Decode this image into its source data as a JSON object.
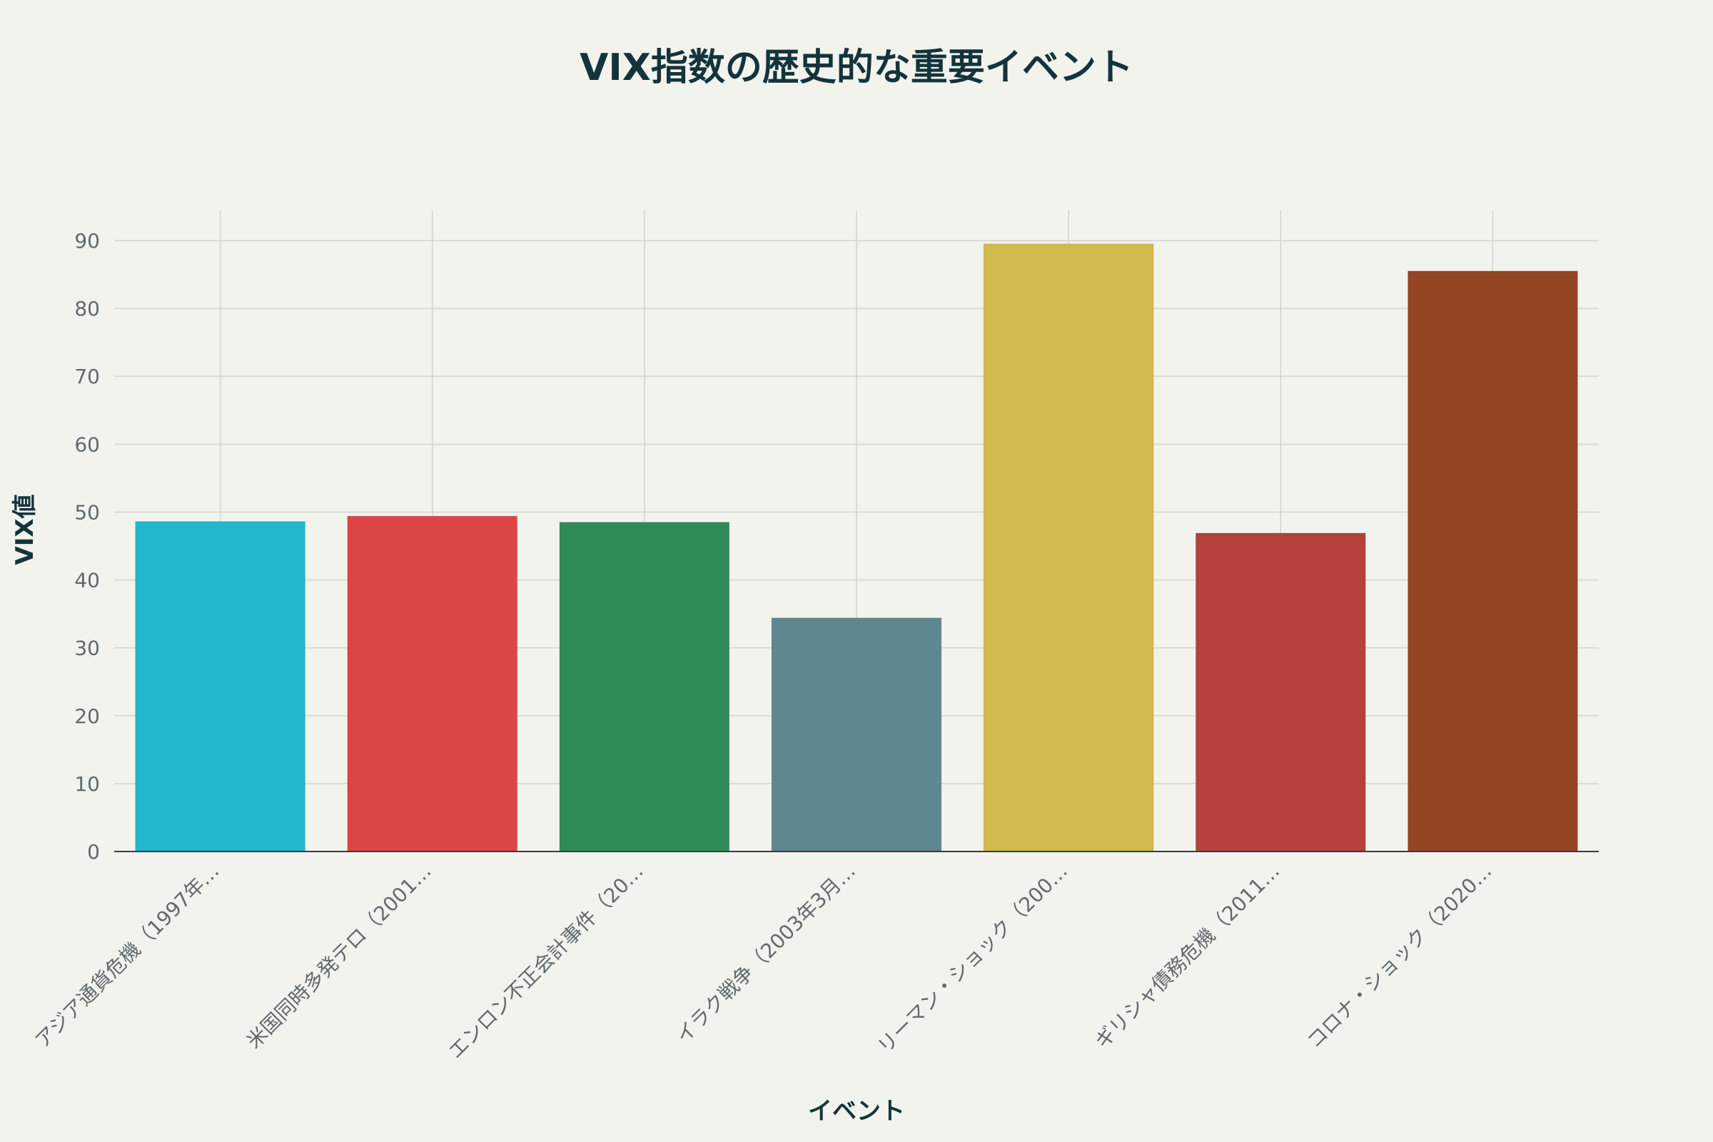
{
  "chart_data": {
    "type": "bar",
    "title": "VIX指数の歴史的な重要イベント",
    "xlabel": "イベント",
    "ylabel": "VIX値",
    "categories": [
      "アジア通貨危機（1997年…",
      "米国同時多発テロ（2001…",
      "エンロン不正会計事件（20…",
      "イラク戦争（2003年3月…",
      "リーマン・ショック（200…",
      "ギリシャ債務危機（2011…",
      "コロナ・ショック（2020…"
    ],
    "values": [
      48.6,
      49.4,
      48.5,
      34.4,
      89.5,
      46.9,
      85.5
    ],
    "colors": [
      "#21b8cd",
      "#db4545",
      "#2e8b57",
      "#5e8790",
      "#d2ba4c",
      "#b4413c",
      "#944524"
    ],
    "ylim": [
      0,
      94
    ],
    "yticks": [
      0,
      10,
      20,
      30,
      40,
      50,
      60,
      70,
      80,
      90
    ],
    "grid": true,
    "legend": "none"
  }
}
